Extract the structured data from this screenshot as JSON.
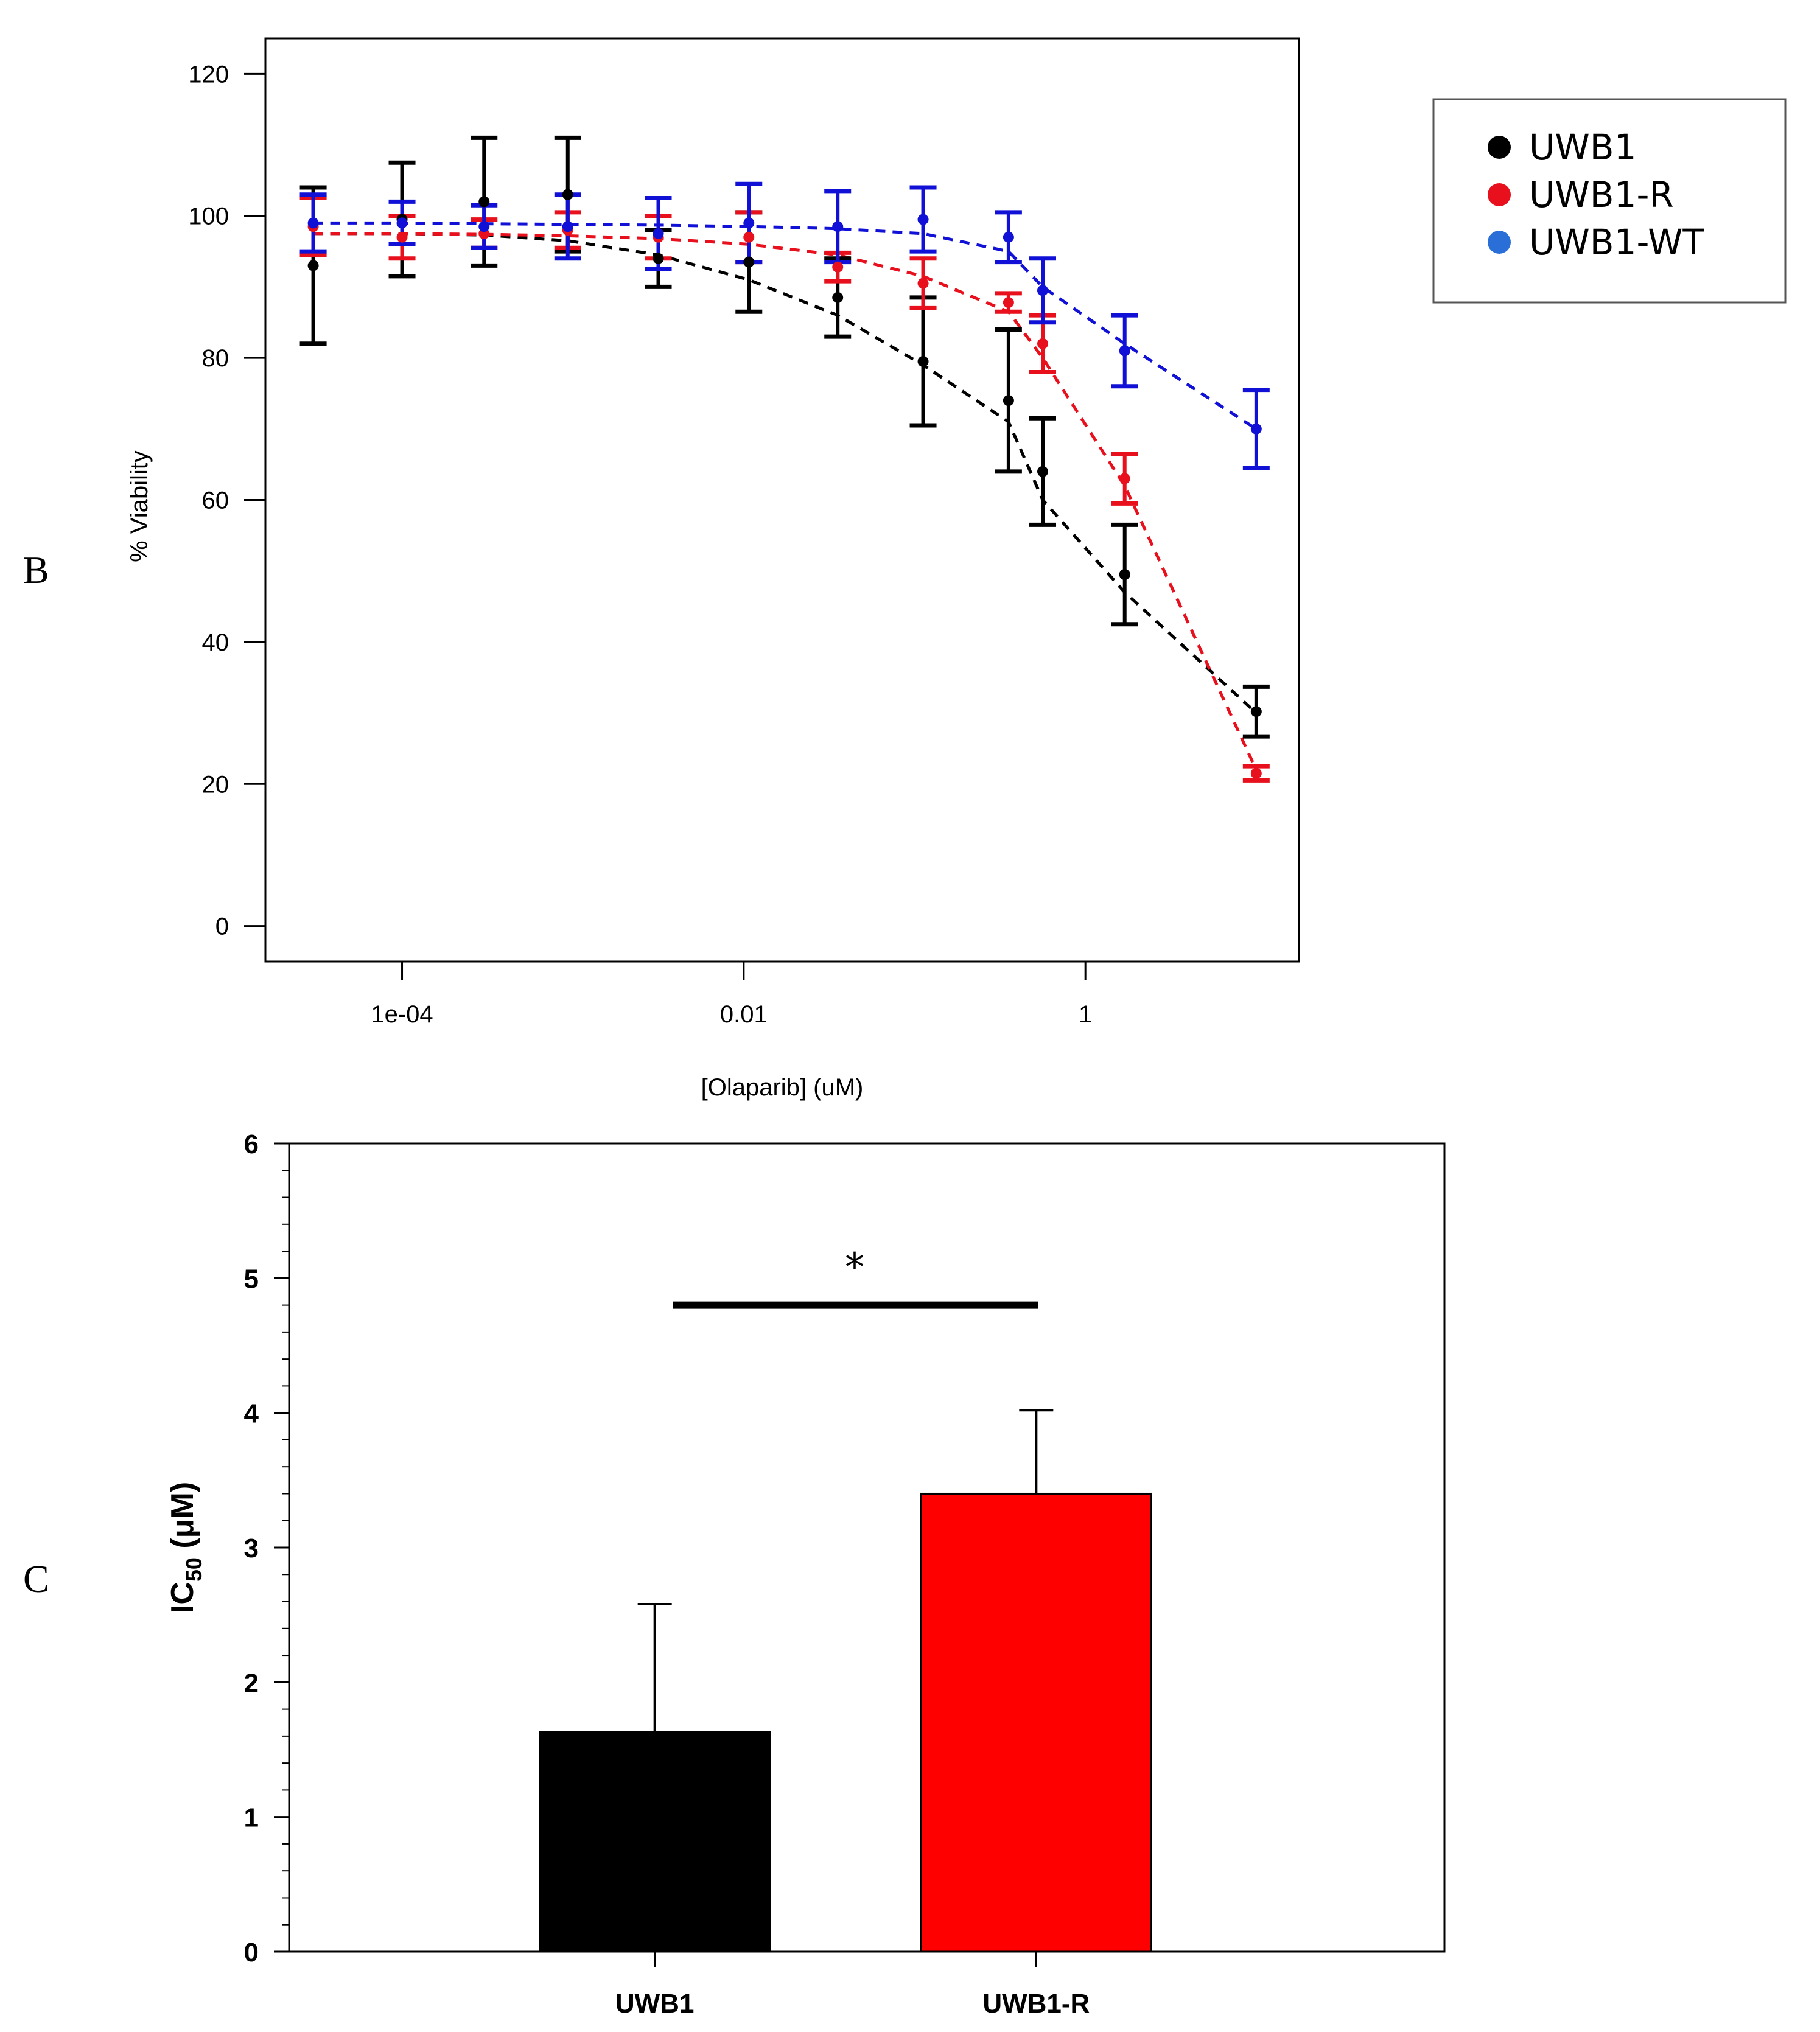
{
  "panels": {
    "b_label": "B",
    "c_label": "C"
  },
  "chart_data": [
    {
      "type": "scatter",
      "panel": "B",
      "title": "",
      "xlabel": "[Olaparib] (uM)",
      "ylabel": "% Viability",
      "xscale": "log10",
      "xlim_log10": [
        -4.8,
        1.25
      ],
      "ylim": [
        -5,
        125
      ],
      "x_ticks": [
        {
          "value_log10": -4,
          "label": "1e-04"
        },
        {
          "value_log10": -2,
          "label": "0.01"
        },
        {
          "value_log10": 0,
          "label": "1"
        }
      ],
      "y_ticks": [
        0,
        20,
        40,
        60,
        80,
        100,
        120
      ],
      "grid": false,
      "legend_position": "outside-right",
      "series": [
        {
          "name": "UWB1",
          "color": "#000000",
          "x_log10": [
            -4.52,
            -4.0,
            -3.52,
            -3.03,
            -2.5,
            -1.97,
            -1.45,
            -0.95,
            -0.45,
            -0.25,
            0.23,
            1.0
          ],
          "values": [
            93,
            99.5,
            102,
            103,
            94,
            93.5,
            88.5,
            79.5,
            74,
            64,
            49.5,
            30.2
          ],
          "err": [
            11,
            8,
            9,
            8,
            4,
            7,
            5.5,
            9,
            10,
            7.5,
            7,
            3.5
          ],
          "fit": [
            97.5,
            97.5,
            97.3,
            96.5,
            94.5,
            91,
            86,
            79,
            71,
            60,
            47,
            30
          ]
        },
        {
          "name": "UWB1-R",
          "color": "#e8101c",
          "x_log10": [
            -4.52,
            -4.0,
            -3.52,
            -3.03,
            -2.5,
            -1.97,
            -1.45,
            -0.95,
            -0.45,
            -0.25,
            0.23,
            1.0
          ],
          "values": [
            98.5,
            97,
            97.5,
            98,
            97,
            97,
            92.8,
            90.5,
            87.8,
            82,
            63,
            21.5
          ],
          "err": [
            4,
            3,
            2,
            2.5,
            3,
            3.5,
            2,
            3.5,
            1.3,
            4,
            3.5,
            1
          ],
          "fit": [
            97.5,
            97.5,
            97.4,
            97.2,
            96.8,
            96,
            94.5,
            91.5,
            86.5,
            80,
            62,
            22
          ]
        },
        {
          "name": "UWB1-WT",
          "color": "#1010d6",
          "x_log10": [
            -4.52,
            -4.0,
            -3.52,
            -3.03,
            -2.5,
            -1.97,
            -1.45,
            -0.95,
            -0.45,
            -0.25,
            0.23,
            1.0
          ],
          "values": [
            99,
            99,
            98.5,
            98.5,
            97.5,
            99,
            98.5,
            99.5,
            97,
            89.5,
            81,
            70
          ],
          "err": [
            4,
            3,
            3,
            4.5,
            5,
            5.5,
            5,
            4.5,
            3.5,
            4.5,
            5,
            5.5
          ],
          "fit": [
            99,
            99,
            98.9,
            98.8,
            98.7,
            98.5,
            98.2,
            97.5,
            95,
            90,
            82,
            70
          ]
        }
      ]
    },
    {
      "type": "bar",
      "panel": "C",
      "title": "",
      "xlabel": "",
      "ylabel_main": "IC",
      "ylabel_sub": "50",
      "ylabel_unit": " (μM)",
      "categories": [
        "UWB1",
        "UWB1-R"
      ],
      "values": [
        1.63,
        3.4
      ],
      "err": [
        0.95,
        0.62
      ],
      "colors": [
        "#000000",
        "#ff0000"
      ],
      "ylim": [
        0,
        6
      ],
      "y_ticks": [
        0,
        1,
        2,
        3,
        4,
        5,
        6
      ],
      "significance": {
        "label": "*",
        "between": [
          "UWB1",
          "UWB1-R"
        ],
        "bar_y": 4.8
      }
    }
  ]
}
